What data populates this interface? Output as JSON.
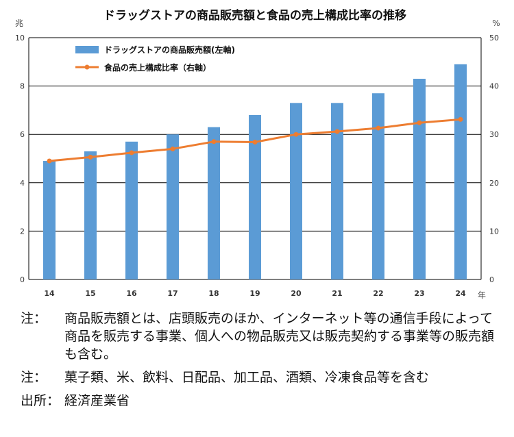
{
  "chart_data": {
    "type": "bar",
    "title": "ドラッグストアの商品販売額と食品の売上構成比率の推移",
    "y_left_unit": "兆",
    "y_right_unit": "%",
    "x_unit": "年",
    "categories": [
      "14",
      "15",
      "16",
      "17",
      "18",
      "19",
      "20",
      "21",
      "22",
      "23",
      "24"
    ],
    "ylim_left": [
      0,
      10
    ],
    "yticks_left": [
      "0",
      "2",
      "4",
      "6",
      "8",
      "10"
    ],
    "ylim_right": [
      0,
      50
    ],
    "yticks_right": [
      "0",
      "10",
      "20",
      "30",
      "40",
      "50"
    ],
    "grid": true,
    "legend_position": "top-left",
    "series": [
      {
        "name": "ドラッグストアの商品販売額(左軸)",
        "type": "bar",
        "axis": "left",
        "color": "#5b9bd5",
        "values": [
          4.9,
          5.3,
          5.7,
          6.0,
          6.3,
          6.8,
          7.3,
          7.3,
          7.7,
          8.3,
          8.9
        ]
      },
      {
        "name": "食品の売上構成比率（右軸）",
        "type": "line",
        "axis": "right",
        "color": "#ed7d31",
        "values": [
          24.5,
          25.3,
          26.2,
          27.0,
          28.5,
          28.4,
          30.0,
          30.6,
          31.3,
          32.4,
          33.1
        ]
      }
    ]
  },
  "notes": [
    {
      "label": "注：",
      "text": "商品販売額とは、店頭販売のほか、インターネット等の通信手段によって商品を販売する事業、個人への物品販売又は販売契約する事業等の販売額も含む。"
    },
    {
      "label": "注：",
      "text": "菓子類、米、飲料、日配品、加工品、酒類、冷凍食品等を含む"
    }
  ],
  "source": {
    "label": "出所：",
    "text": "経済産業省"
  }
}
